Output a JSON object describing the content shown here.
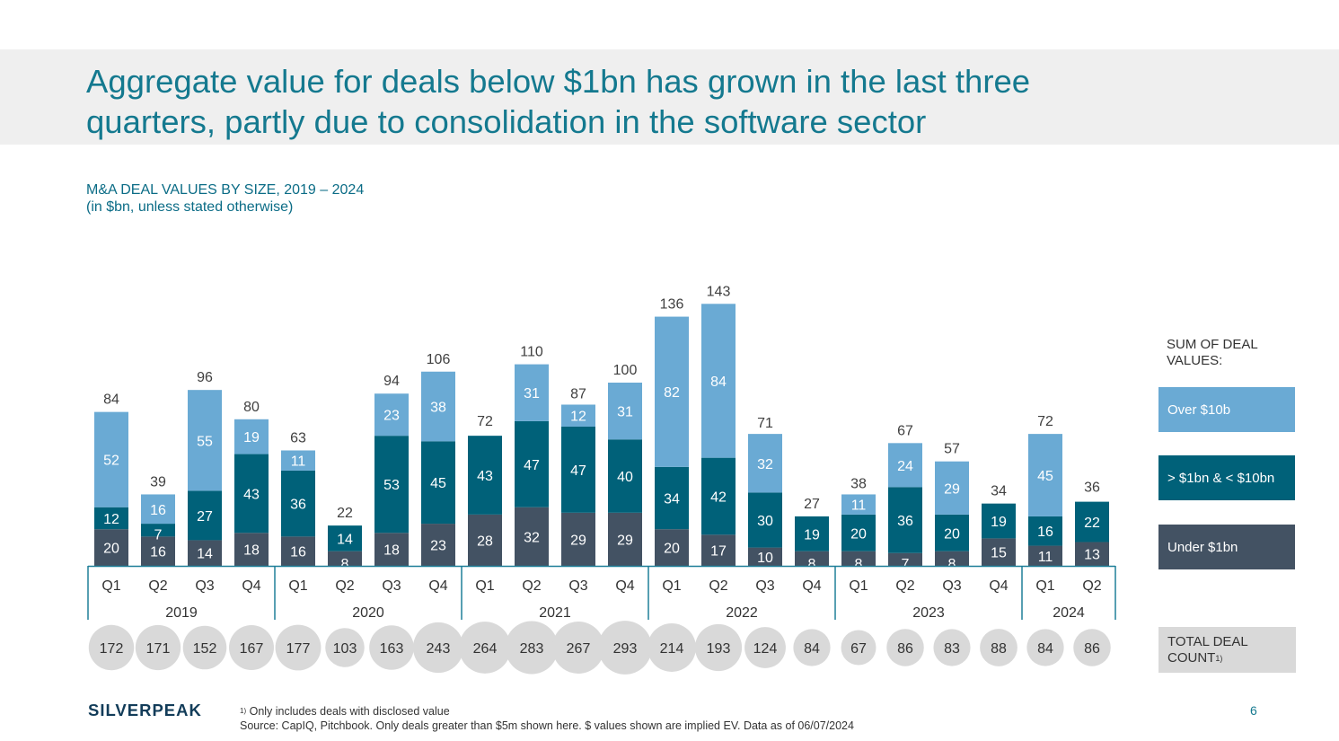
{
  "title": "Aggregate value for deals below $1bn has grown in the last three quarters, partly due to consolidation in the software sector",
  "chart_data": {
    "type": "bar",
    "stacked": true,
    "title": "M&A DEAL VALUES BY SIZE, 2019 – 2024",
    "subtitle": "(in $bn, unless stated otherwise)",
    "categories": [
      "Q1",
      "Q2",
      "Q3",
      "Q4",
      "Q1",
      "Q2",
      "Q3",
      "Q4",
      "Q1",
      "Q2",
      "Q3",
      "Q4",
      "Q1",
      "Q2",
      "Q3",
      "Q4",
      "Q1",
      "Q2",
      "Q3",
      "Q4",
      "Q1",
      "Q2"
    ],
    "years": [
      {
        "label": "2019",
        "count": 4
      },
      {
        "label": "2020",
        "count": 4
      },
      {
        "label": "2021",
        "count": 4
      },
      {
        "label": "2022",
        "count": 4
      },
      {
        "label": "2023",
        "count": 4
      },
      {
        "label": "2024",
        "count": 2
      }
    ],
    "series": [
      {
        "name": "Under $1bn",
        "color": "#435263",
        "values": [
          20,
          16,
          14,
          18,
          16,
          8,
          18,
          23,
          28,
          32,
          29,
          29,
          20,
          17,
          10,
          8,
          8,
          7,
          8,
          15,
          11,
          13
        ]
      },
      {
        "name": "> $1bn & < $10bn",
        "color": "#006179",
        "values": [
          12,
          7,
          27,
          43,
          36,
          14,
          53,
          45,
          43,
          47,
          47,
          40,
          34,
          42,
          30,
          19,
          20,
          36,
          20,
          19,
          16,
          22
        ]
      },
      {
        "name": "Over $10b",
        "color": "#6aaad4",
        "values": [
          52,
          16,
          55,
          19,
          11,
          null,
          23,
          38,
          null,
          31,
          12,
          31,
          82,
          84,
          32,
          null,
          11,
          24,
          29,
          null,
          45,
          null
        ]
      }
    ],
    "totals": [
      84,
      39,
      96,
      80,
      63,
      22,
      94,
      106,
      72,
      110,
      87,
      100,
      136,
      143,
      71,
      27,
      38,
      67,
      57,
      34,
      72,
      36
    ],
    "deal_counts": [
      172,
      171,
      152,
      167,
      177,
      103,
      163,
      243,
      264,
      283,
      267,
      293,
      214,
      193,
      124,
      84,
      67,
      86,
      83,
      88,
      84,
      86
    ],
    "legend": {
      "heading": "SUM OF DEAL VALUES:",
      "placement": "right",
      "total_label": "TOTAL DEAL COUNT",
      "total_note": "1)"
    },
    "ylim": [
      0,
      150
    ],
    "grid": false
  },
  "footer": {
    "logo": "SILVERPEAK",
    "note_marker": "1)",
    "note": "Only includes deals with disclosed value",
    "source": "Source: CapIQ, Pitchbook. Only deals greater than $5m shown here. $ values shown are implied EV. Data as of 06/07/2024",
    "page": "6"
  }
}
